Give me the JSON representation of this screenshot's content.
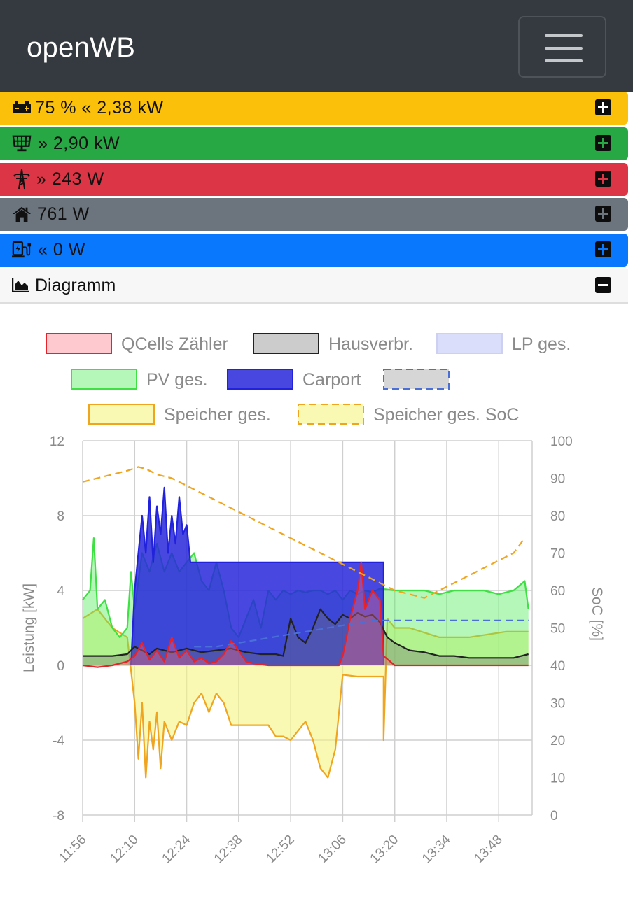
{
  "app": {
    "brand": "openWB"
  },
  "cards": [
    {
      "id": "battery",
      "text": "75 % « 2,38 kW",
      "icon": "battery-icon",
      "bg": "#fbc00a"
    },
    {
      "id": "pv",
      "text": "» 2,90 kW",
      "icon": "solar-panel-icon",
      "bg": "#28a745"
    },
    {
      "id": "grid",
      "text": "» 243 W",
      "icon": "power-tower-icon",
      "bg": "#dc3545"
    },
    {
      "id": "house",
      "text": "761 W",
      "icon": "home-icon",
      "bg": "#6c757d"
    },
    {
      "id": "charge",
      "text": "« 0 W",
      "icon": "charging-station-icon",
      "bg": "#0a78fc"
    }
  ],
  "diagram": {
    "title": "Diagramm",
    "icon": "area-chart-icon",
    "toggle": "collapse"
  },
  "chart_data": {
    "type": "line",
    "legend": [
      {
        "name": "QCells Zähler",
        "color": "#e8222a",
        "fill": "rgba(255,100,120,0.35)",
        "dash": false
      },
      {
        "name": "Hausverbr.",
        "color": "#222222",
        "fill": "rgba(110,110,110,0.35)",
        "dash": false
      },
      {
        "name": "LP ges.",
        "color": "#cdd0f0",
        "fill": "rgba(190,195,245,0.55)",
        "dash": false
      },
      {
        "name": "PV ges.",
        "color": "#3ee043",
        "fill": "rgba(90,235,100,0.45)",
        "dash": false
      },
      {
        "name": "Carport",
        "color": "#2222dd",
        "fill": "rgba(40,40,220,0.85)",
        "dash": false
      },
      {
        "name": "",
        "color": "#4a6fd8",
        "fill": "#d6d6d6",
        "dash": true
      },
      {
        "name": "Speicher ges.",
        "color": "#f0a520",
        "fill": "rgba(245,245,130,0.6)",
        "dash": false
      },
      {
        "name": "Speicher ges. SoC",
        "color": "#f0a520",
        "fill": "rgba(245,245,130,0.6)",
        "dash": true
      }
    ],
    "x_ticks": [
      "11:56",
      "12:10",
      "12:24",
      "12:38",
      "12:52",
      "13:06",
      "13:20",
      "13:34",
      "13:48"
    ],
    "y_left": {
      "label": "Leistung [kW]",
      "ticks": [
        12,
        8,
        4,
        0,
        -4,
        -8
      ],
      "range": [
        -8,
        12
      ]
    },
    "y_right": {
      "label": "SoC [%]",
      "ticks": [
        100,
        90,
        80,
        70,
        60,
        50,
        40,
        30,
        20,
        10,
        0
      ],
      "range": [
        0,
        100
      ]
    },
    "x_range_minutes": [
      716,
      837
    ],
    "series": [
      {
        "name": "Speicher ges. SoC",
        "axis": "right",
        "points": [
          [
            716,
            89
          ],
          [
            720,
            90
          ],
          [
            724,
            91
          ],
          [
            728,
            92
          ],
          [
            731,
            93
          ],
          [
            733,
            92.5
          ],
          [
            736,
            91
          ],
          [
            740,
            90
          ],
          [
            744,
            88
          ],
          [
            748,
            86
          ],
          [
            752,
            84
          ],
          [
            756,
            82
          ],
          [
            760,
            80
          ],
          [
            764,
            78
          ],
          [
            768,
            76
          ],
          [
            772,
            74
          ],
          [
            776,
            72
          ],
          [
            780,
            70
          ],
          [
            784,
            68
          ],
          [
            788,
            66
          ],
          [
            792,
            64
          ],
          [
            796,
            62
          ],
          [
            800,
            60
          ],
          [
            804,
            59
          ],
          [
            808,
            58
          ],
          [
            812,
            60
          ],
          [
            816,
            62
          ],
          [
            820,
            64
          ],
          [
            824,
            66
          ],
          [
            828,
            68
          ],
          [
            832,
            70
          ],
          [
            835,
            74
          ]
        ]
      },
      {
        "name": "",
        "axis": "right",
        "points": [
          [
            746,
            45
          ],
          [
            752,
            45
          ],
          [
            758,
            46
          ],
          [
            764,
            47
          ],
          [
            770,
            48
          ],
          [
            776,
            49
          ],
          [
            782,
            50
          ],
          [
            788,
            51
          ],
          [
            794,
            52
          ],
          [
            800,
            52
          ],
          [
            806,
            52
          ],
          [
            812,
            52
          ],
          [
            818,
            52
          ],
          [
            824,
            52
          ],
          [
            830,
            52
          ],
          [
            836,
            52
          ]
        ]
      },
      {
        "name": "Carport",
        "axis": "left",
        "points": [
          [
            729,
            0
          ],
          [
            730,
            4
          ],
          [
            731,
            6
          ],
          [
            732,
            8
          ],
          [
            733,
            6
          ],
          [
            734,
            9
          ],
          [
            735,
            5.5
          ],
          [
            736,
            8.5
          ],
          [
            737,
            7
          ],
          [
            738,
            9.5
          ],
          [
            739,
            6
          ],
          [
            740,
            8
          ],
          [
            741,
            6.5
          ],
          [
            742,
            9
          ],
          [
            743,
            7
          ],
          [
            744,
            7.5
          ],
          [
            745,
            5.5
          ],
          [
            747,
            5.5
          ],
          [
            760,
            5.5
          ],
          [
            770,
            5.5
          ],
          [
            780,
            5.5
          ],
          [
            790,
            5.5
          ],
          [
            797,
            5.5
          ],
          [
            797,
            0
          ]
        ]
      },
      {
        "name": "QCells Zähler",
        "axis": "left",
        "points": [
          [
            716,
            0
          ],
          [
            720,
            -0.1
          ],
          [
            724,
            0
          ],
          [
            728,
            0.2
          ],
          [
            730,
            0.5
          ],
          [
            732,
            1.2
          ],
          [
            734,
            0.3
          ],
          [
            736,
            0.8
          ],
          [
            738,
            0.2
          ],
          [
            740,
            1.5
          ],
          [
            742,
            0.4
          ],
          [
            744,
            0.8
          ],
          [
            746,
            0.2
          ],
          [
            748,
            0.4
          ],
          [
            750,
            0.1
          ],
          [
            752,
            0.2
          ],
          [
            754,
            0.6
          ],
          [
            756,
            1.3
          ],
          [
            758,
            0.8
          ],
          [
            760,
            0.2
          ],
          [
            762,
            0.1
          ],
          [
            766,
            0
          ],
          [
            770,
            0
          ],
          [
            775,
            0
          ],
          [
            780,
            0
          ],
          [
            785,
            0
          ],
          [
            786,
            0.5
          ],
          [
            788,
            2.5
          ],
          [
            790,
            4
          ],
          [
            791,
            5.5
          ],
          [
            792,
            3
          ],
          [
            794,
            4
          ],
          [
            796,
            3.5
          ],
          [
            797,
            0.5
          ],
          [
            800,
            0
          ],
          [
            810,
            0
          ],
          [
            820,
            0
          ],
          [
            836,
            0
          ]
        ]
      },
      {
        "name": "Hausverbr.",
        "axis": "left",
        "points": [
          [
            716,
            0.5
          ],
          [
            720,
            0.5
          ],
          [
            724,
            0.5
          ],
          [
            728,
            0.6
          ],
          [
            730,
            1
          ],
          [
            732,
            0.8
          ],
          [
            734,
            0.6
          ],
          [
            736,
            0.9
          ],
          [
            740,
            0.7
          ],
          [
            744,
            0.9
          ],
          [
            748,
            0.7
          ],
          [
            752,
            0.8
          ],
          [
            756,
            0.9
          ],
          [
            760,
            0.7
          ],
          [
            764,
            0.6
          ],
          [
            768,
            0.6
          ],
          [
            770,
            0.5
          ],
          [
            772,
            2.5
          ],
          [
            774,
            1.5
          ],
          [
            776,
            1.2
          ],
          [
            778,
            2
          ],
          [
            780,
            3
          ],
          [
            782,
            2.5
          ],
          [
            784,
            2.2
          ],
          [
            786,
            2.7
          ],
          [
            788,
            2.5
          ],
          [
            790,
            2.8
          ],
          [
            792,
            2.6
          ],
          [
            794,
            2.7
          ],
          [
            796,
            2.3
          ],
          [
            798,
            1.5
          ],
          [
            800,
            1.2
          ],
          [
            804,
            0.8
          ],
          [
            808,
            0.7
          ],
          [
            812,
            0.5
          ],
          [
            816,
            0.5
          ],
          [
            820,
            0.4
          ],
          [
            826,
            0.4
          ],
          [
            832,
            0.4
          ],
          [
            836,
            0.6
          ]
        ]
      },
      {
        "name": "PV ges.",
        "axis": "left",
        "points": [
          [
            716,
            3.5
          ],
          [
            718,
            4
          ],
          [
            719,
            6.8
          ],
          [
            720,
            3
          ],
          [
            722,
            3.5
          ],
          [
            724,
            2
          ],
          [
            726,
            1.5
          ],
          [
            728,
            2
          ],
          [
            729,
            5
          ],
          [
            730,
            3
          ],
          [
            732,
            6
          ],
          [
            734,
            5
          ],
          [
            736,
            6.5
          ],
          [
            738,
            5
          ],
          [
            740,
            6
          ],
          [
            742,
            5
          ],
          [
            744,
            5.5
          ],
          [
            746,
            6
          ],
          [
            748,
            4.5
          ],
          [
            750,
            4
          ],
          [
            752,
            5.5
          ],
          [
            754,
            4
          ],
          [
            756,
            2
          ],
          [
            758,
            1.5
          ],
          [
            760,
            2.5
          ],
          [
            762,
            3.5
          ],
          [
            764,
            2
          ],
          [
            766,
            4
          ],
          [
            768,
            3.5
          ],
          [
            770,
            4
          ],
          [
            772,
            3.8
          ],
          [
            774,
            4
          ],
          [
            776,
            3.9
          ],
          [
            778,
            4
          ],
          [
            780,
            4
          ],
          [
            782,
            3.8
          ],
          [
            784,
            4
          ],
          [
            786,
            3.5
          ],
          [
            788,
            4
          ],
          [
            790,
            3.8
          ],
          [
            792,
            4
          ],
          [
            794,
            3.9
          ],
          [
            796,
            4.1
          ],
          [
            800,
            4
          ],
          [
            804,
            4
          ],
          [
            808,
            4
          ],
          [
            812,
            3.8
          ],
          [
            816,
            4
          ],
          [
            820,
            4
          ],
          [
            824,
            4
          ],
          [
            828,
            3.8
          ],
          [
            832,
            4
          ],
          [
            835,
            4.5
          ],
          [
            836,
            3
          ]
        ]
      },
      {
        "name": "Speicher ges.",
        "axis": "left",
        "points": [
          [
            716,
            2.5
          ],
          [
            720,
            3
          ],
          [
            724,
            2
          ],
          [
            728,
            1.5
          ],
          [
            730,
            -2
          ],
          [
            731,
            -5
          ],
          [
            732,
            -2
          ],
          [
            733,
            -6
          ],
          [
            734,
            -3
          ],
          [
            735,
            -4.5
          ],
          [
            736,
            -2.5
          ],
          [
            737,
            -5.5
          ],
          [
            738,
            -3
          ],
          [
            740,
            -4
          ],
          [
            742,
            -3
          ],
          [
            744,
            -3.2
          ],
          [
            746,
            -2
          ],
          [
            748,
            -1.5
          ],
          [
            750,
            -2.5
          ],
          [
            752,
            -1.5
          ],
          [
            754,
            -2
          ],
          [
            756,
            -3.2
          ],
          [
            760,
            -3.2
          ],
          [
            766,
            -3.2
          ],
          [
            768,
            -3.8
          ],
          [
            770,
            -3.8
          ],
          [
            772,
            -4
          ],
          [
            776,
            -3
          ],
          [
            778,
            -4
          ],
          [
            780,
            -5.5
          ],
          [
            782,
            -6
          ],
          [
            784,
            -4.5
          ],
          [
            786,
            -0.5
          ],
          [
            790,
            -0.6
          ],
          [
            797,
            -0.6
          ],
          [
            797,
            -4
          ],
          [
            798,
            2.5
          ],
          [
            800,
            2
          ],
          [
            804,
            2
          ],
          [
            812,
            1.5
          ],
          [
            820,
            1.5
          ],
          [
            830,
            1.8
          ],
          [
            836,
            1.8
          ]
        ]
      }
    ]
  }
}
